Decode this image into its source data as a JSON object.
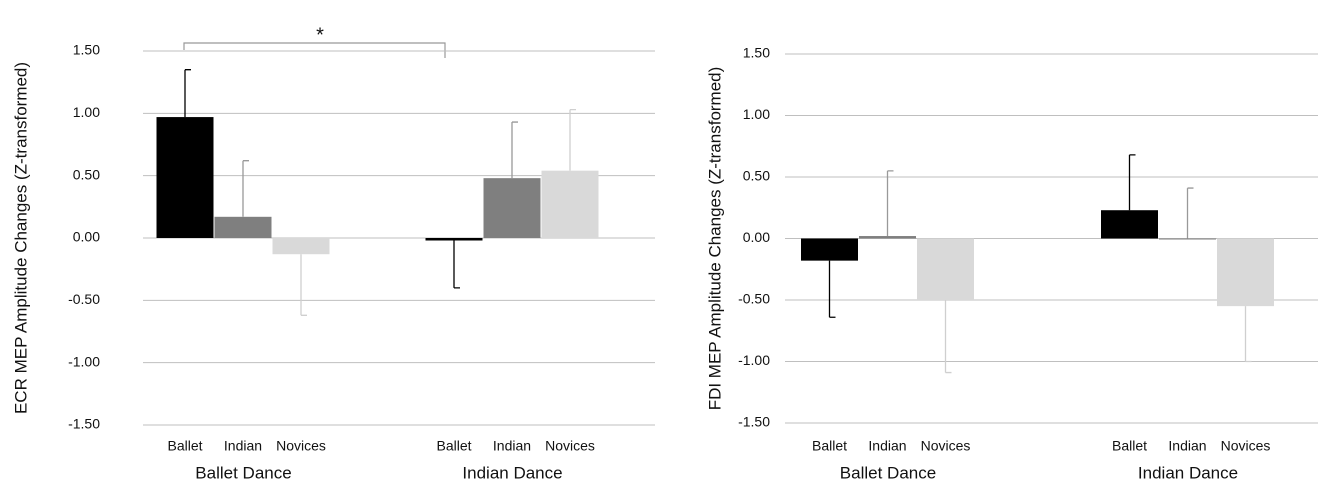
{
  "chart_data": [
    {
      "type": "bar",
      "y_label": "ECR MEP Amplitude Changes (Z-transformed)",
      "categories": [
        "Ballet Dance",
        "Indian Dance"
      ],
      "series": [
        {
          "name": "Ballet",
          "color": "#000000",
          "values": [
            0.97,
            -0.02
          ],
          "errors": [
            0.38,
            0.38
          ]
        },
        {
          "name": "Indian",
          "color": "#7f7f7f",
          "values": [
            0.17,
            0.48
          ],
          "errors": [
            0.45,
            0.45
          ]
        },
        {
          "name": "Novices",
          "color": "#d9d9d9",
          "values": [
            -0.13,
            0.54
          ],
          "errors": [
            0.49,
            0.49
          ]
        }
      ],
      "ylim": [
        -1.5,
        1.5
      ],
      "yticks": [
        {
          "value": 1.5,
          "label": "1.50"
        },
        {
          "value": 1,
          "label": "1.00"
        },
        {
          "value": 0.5,
          "label": "0.50"
        },
        {
          "value": 0,
          "label": "0.00"
        },
        {
          "value": -0.5,
          "label": "-0.50"
        },
        {
          "value": -1,
          "label": "-1.00"
        },
        {
          "value": -1.5,
          "label": "-1.50"
        }
      ],
      "grid": true,
      "annotation": "*"
    },
    {
      "type": "bar",
      "y_label": "FDI MEP Amplitude Changes (Z-transformed)",
      "categories": [
        "Ballet Dance",
        "Indian Dance"
      ],
      "series": [
        {
          "name": "Ballet",
          "color": "#000000",
          "values": [
            -0.18,
            0.23
          ],
          "errors": [
            0.46,
            0.45
          ]
        },
        {
          "name": "Indian",
          "color": "#7f7f7f",
          "values": [
            0.02,
            0.0
          ],
          "errors": [
            0.53,
            0.41
          ]
        },
        {
          "name": "Novices",
          "color": "#d9d9d9",
          "values": [
            -0.5,
            -0.55
          ],
          "errors": [
            0.59,
            0.45
          ]
        }
      ],
      "ylim": [
        -1.5,
        1.5
      ],
      "yticks": [
        {
          "value": 1.5,
          "label": "1.50"
        },
        {
          "value": 1,
          "label": "1.00"
        },
        {
          "value": 0.5,
          "label": "0.50"
        },
        {
          "value": 0,
          "label": "0.00"
        },
        {
          "value": -0.5,
          "label": "-0.50"
        },
        {
          "value": -1,
          "label": "-1.00"
        },
        {
          "value": -1.5,
          "label": "-1.50"
        }
      ],
      "grid": true
    }
  ]
}
